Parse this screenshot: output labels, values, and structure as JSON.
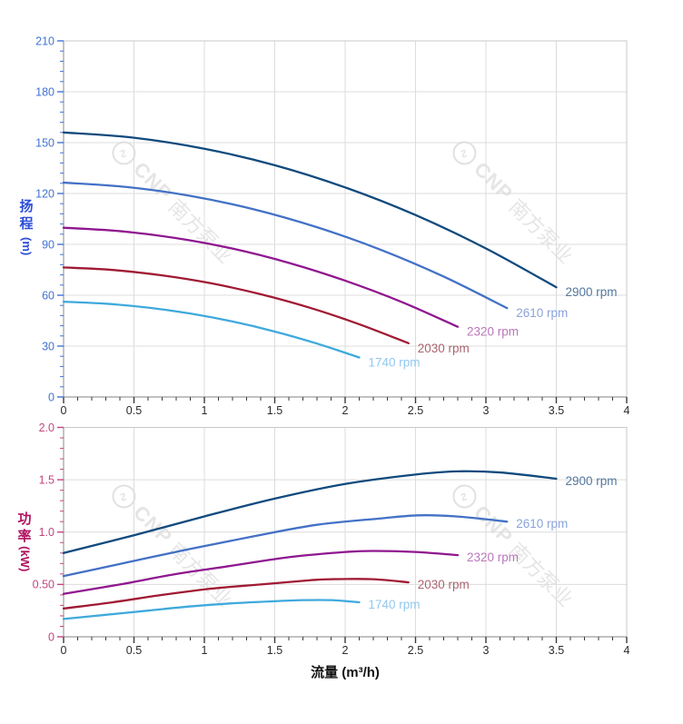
{
  "watermark": {
    "brand": "CNP",
    "company": "南方泵业"
  },
  "x_axis_title": "流量 (m³/h)",
  "chart_data": [
    {
      "type": "line",
      "id": "head-vs-flow",
      "title": "",
      "xlabel": "流量 (m³/h)",
      "ylabel": "扬程 (m)",
      "ylabel_chars": [
        "扬",
        "程"
      ],
      "ylabel_unit": "(m)",
      "xlim": [
        0,
        4
      ],
      "ylim": [
        0,
        210
      ],
      "x_major_step": 0.5,
      "x_minor_step": 0.1,
      "y_major_step": 30,
      "y_minor_step": 6,
      "x_ticks": [
        "0",
        "0.5",
        "1",
        "1.5",
        "2",
        "2.5",
        "3",
        "3.5",
        "4"
      ],
      "y_ticks": [
        "0",
        "30",
        "60",
        "90",
        "120",
        "150",
        "180",
        "210"
      ],
      "grid": true,
      "legend_position": "at-line-end",
      "axis_colors": {
        "title": "#2c4ed8",
        "ticks": "#4273d4"
      },
      "series": [
        {
          "name": "2900 rpm",
          "color": "#104a7d",
          "label_color": "#54789f",
          "points": [
            [
              0,
              156
            ],
            [
              0.5,
              152.9
            ],
            [
              1,
              146.4
            ],
            [
              1.5,
              136.7
            ],
            [
              2,
              123.6
            ],
            [
              2.5,
              107.3
            ],
            [
              3,
              87.6
            ],
            [
              3.5,
              64.7
            ]
          ]
        },
        {
          "name": "2610 rpm",
          "color": "#4371c6",
          "label_color": "#8ba3da",
          "points": [
            [
              0,
              126.4
            ],
            [
              0.45,
              123.8
            ],
            [
              0.9,
              118.6
            ],
            [
              1.35,
              110.7
            ],
            [
              1.8,
              100.1
            ],
            [
              2.25,
              86.9
            ],
            [
              2.7,
              71.0
            ],
            [
              3.15,
              52.4
            ]
          ]
        },
        {
          "name": "2320 rpm",
          "color": "#8f178f",
          "label_color": "#ba77ba",
          "points": [
            [
              0,
              99.8
            ],
            [
              0.4,
              97.8
            ],
            [
              0.8,
              93.7
            ],
            [
              1.2,
              87.5
            ],
            [
              1.6,
              79.1
            ],
            [
              2,
              68.6
            ],
            [
              2.4,
              56.1
            ],
            [
              2.8,
              41.4
            ]
          ]
        },
        {
          "name": "2030 rpm",
          "color": "#a01a33",
          "label_color": "#aa646f",
          "points": [
            [
              0,
              76.4
            ],
            [
              0.35,
              74.9
            ],
            [
              0.7,
              71.7
            ],
            [
              1.05,
              67.0
            ],
            [
              1.4,
              60.6
            ],
            [
              1.75,
              52.6
            ],
            [
              2.1,
              42.9
            ],
            [
              2.45,
              31.7
            ]
          ]
        },
        {
          "name": "1740 rpm",
          "color": "#3fa9dc",
          "label_color": "#92c8ee",
          "points": [
            [
              0,
              56.2
            ],
            [
              0.3,
              55.0
            ],
            [
              0.6,
              52.7
            ],
            [
              0.9,
              49.2
            ],
            [
              1.2,
              44.5
            ],
            [
              1.5,
              38.6
            ],
            [
              1.8,
              31.5
            ],
            [
              2.1,
              23.3
            ]
          ]
        }
      ]
    },
    {
      "type": "line",
      "id": "power-vs-flow",
      "title": "",
      "xlabel": "流量 (m³/h)",
      "ylabel": "功率 (kW)",
      "ylabel_chars": [
        "功",
        "率"
      ],
      "ylabel_unit": "(kW)",
      "xlim": [
        0,
        4
      ],
      "ylim": [
        0,
        2
      ],
      "x_major_step": 0.5,
      "x_minor_step": 0.1,
      "y_major_step": 0.5,
      "y_minor_step": 0.1,
      "x_ticks": [
        "0",
        "0.5",
        "1",
        "1.5",
        "2",
        "2.5",
        "3",
        "3.5",
        "4"
      ],
      "y_ticks": [
        "0",
        "0.50",
        "1.0",
        "1.5",
        "2.0"
      ],
      "grid": true,
      "legend_position": "at-line-end",
      "axis_colors": {
        "title": "#b0125e",
        "ticks": "#c2457f"
      },
      "series": [
        {
          "name": "2900 rpm",
          "color": "#104a7d",
          "label_color": "#54789f",
          "points": [
            [
              0,
              0.8
            ],
            [
              0.5,
              0.97
            ],
            [
              1,
              1.15
            ],
            [
              1.5,
              1.32
            ],
            [
              2,
              1.46
            ],
            [
              2.5,
              1.55
            ],
            [
              2.8,
              1.58
            ],
            [
              3.1,
              1.57
            ],
            [
              3.5,
              1.51
            ]
          ]
        },
        {
          "name": "2610 rpm",
          "color": "#4371c6",
          "label_color": "#8ba3da",
          "points": [
            [
              0,
              0.58
            ],
            [
              0.45,
              0.71
            ],
            [
              0.9,
              0.84
            ],
            [
              1.35,
              0.96
            ],
            [
              1.8,
              1.07
            ],
            [
              2.25,
              1.13
            ],
            [
              2.52,
              1.16
            ],
            [
              2.79,
              1.15
            ],
            [
              3.15,
              1.1
            ]
          ]
        },
        {
          "name": "2320 rpm",
          "color": "#8f178f",
          "label_color": "#ba77ba",
          "points": [
            [
              0,
              0.41
            ],
            [
              0.4,
              0.5
            ],
            [
              0.8,
              0.6
            ],
            [
              1.2,
              0.68
            ],
            [
              1.6,
              0.76
            ],
            [
              2.0,
              0.81
            ],
            [
              2.2,
              0.82
            ],
            [
              2.5,
              0.81
            ],
            [
              2.8,
              0.78
            ]
          ]
        },
        {
          "name": "2030 rpm",
          "color": "#a01a33",
          "label_color": "#aa646f",
          "points": [
            [
              0,
              0.27
            ],
            [
              0.35,
              0.33
            ],
            [
              0.7,
              0.4
            ],
            [
              1.05,
              0.46
            ],
            [
              1.4,
              0.5
            ],
            [
              1.75,
              0.54
            ],
            [
              1.9,
              0.55
            ],
            [
              2.2,
              0.55
            ],
            [
              2.45,
              0.52
            ]
          ]
        },
        {
          "name": "1740 rpm",
          "color": "#3fa9dc",
          "label_color": "#92c8ee",
          "points": [
            [
              0,
              0.17
            ],
            [
              0.3,
              0.21
            ],
            [
              0.6,
              0.25
            ],
            [
              0.9,
              0.29
            ],
            [
              1.2,
              0.32
            ],
            [
              1.5,
              0.34
            ],
            [
              1.7,
              0.35
            ],
            [
              1.9,
              0.35
            ],
            [
              2.1,
              0.33
            ]
          ]
        }
      ]
    }
  ]
}
